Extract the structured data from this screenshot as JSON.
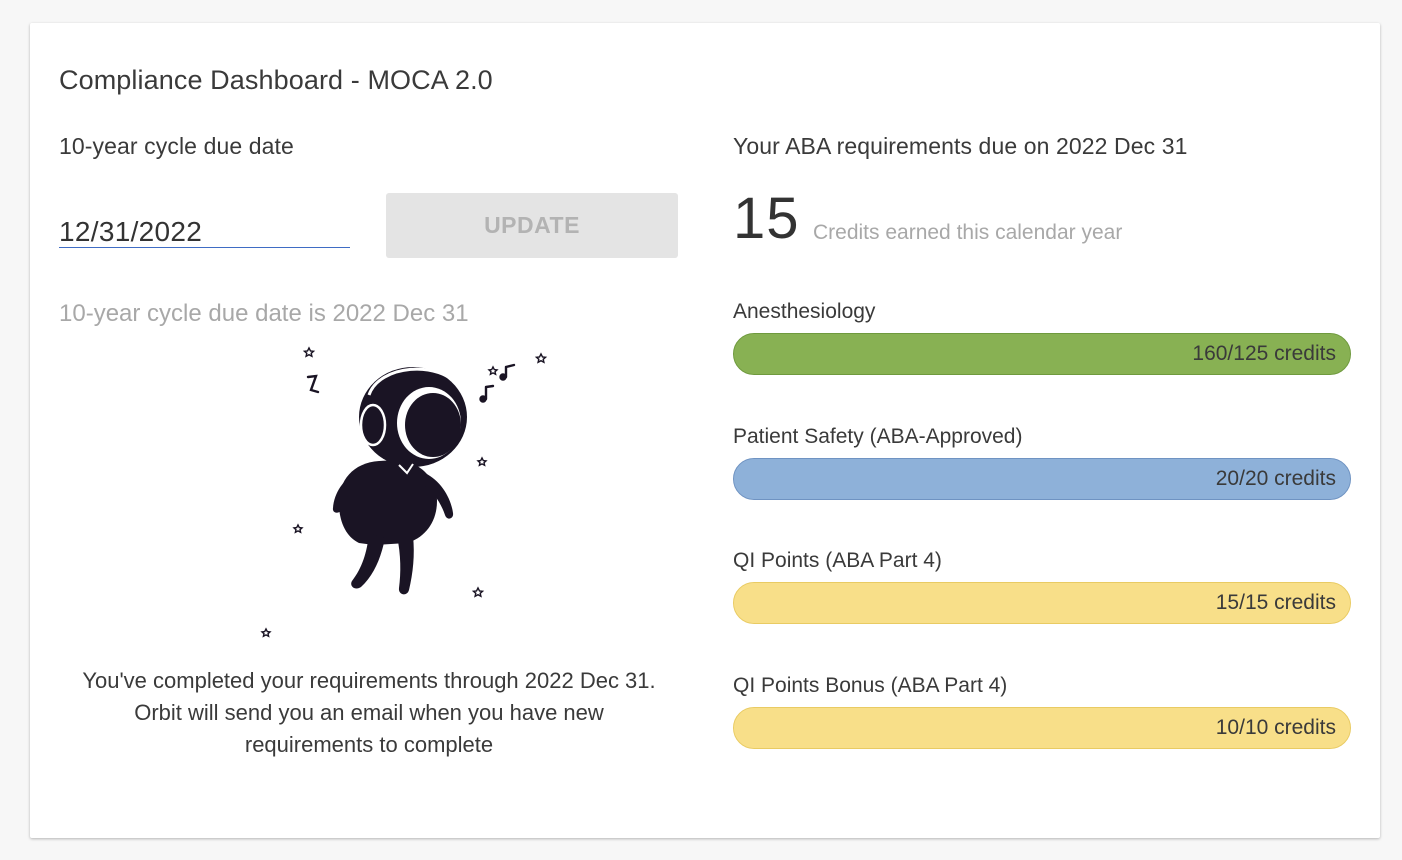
{
  "dashboard": {
    "title": "Compliance Dashboard - MOCA 2.0"
  },
  "cycle": {
    "heading": "10-year cycle due date",
    "date_value": "12/31/2022",
    "update_label": "UPDATE",
    "helper_text": "10-year cycle due date is 2022 Dec 31",
    "illustration_icon": "astronaut-with-headphones-icon",
    "completion_line1": "You've completed your requirements through 2022 Dec 31.",
    "completion_line2": "Orbit will send you an email when you have new",
    "completion_line3": "requirements to complete"
  },
  "requirements": {
    "heading": "Your ABA requirements due on 2022 Dec 31",
    "credits_earned": "15",
    "credits_caption": "Credits earned this calendar year",
    "items": [
      {
        "label": "Anesthesiology",
        "progress_text": "160/125 credits",
        "fraction": 1.0,
        "fill": "#88b153",
        "border": "#6f9a3e"
      },
      {
        "label": "Patient Safety (ABA-Approved)",
        "progress_text": "20/20 credits",
        "fraction": 1.0,
        "fill": "#8eb1d9",
        "border": "#6f93c2"
      },
      {
        "label": "QI Points (ABA Part 4)",
        "progress_text": "15/15 credits",
        "fraction": 1.0,
        "fill": "#f8df89",
        "border": "#e9cb63"
      },
      {
        "label": "QI Points Bonus (ABA Part 4)",
        "progress_text": "10/10 credits",
        "fraction": 1.0,
        "fill": "#f8df89",
        "border": "#e9cb63"
      }
    ]
  }
}
